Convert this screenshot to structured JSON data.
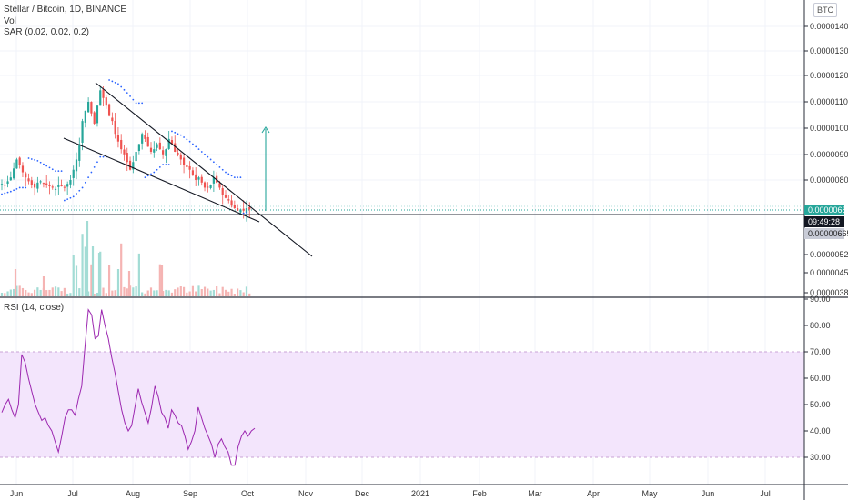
{
  "header": {
    "symbol_line": "Stellar / Bitcoin, 1D, BINANCE",
    "vol_label": "Vol",
    "sar_label": "SAR (0.02, 0.02, 0.2)",
    "rsi_label": "RSI (14, close)",
    "scale_button": "BTC"
  },
  "price_tags": {
    "last_price": "0.00000685",
    "countdown": "09:49:28",
    "cursor_price": "0.00000665"
  },
  "colors": {
    "up": "#26a69a",
    "down": "#ef5350",
    "sar": "#2962ff",
    "rsi_line": "#9c27b0",
    "rsi_band": "#f3e5fc",
    "last_price_tag": "#26a69a",
    "cursor_tag": "#c8cbd6"
  },
  "chart_data": [
    {
      "type": "candlestick",
      "title": "Stellar / Bitcoin, 1D, BINANCE",
      "price_ticks": [
        "0.00001400",
        "0.00001300",
        "0.00001200",
        "0.00001100",
        "0.00001000",
        "0.00000900",
        "0.00000800",
        "0.00000520",
        "0.00000450",
        "0.00000380"
      ],
      "x_ticks": [
        "Jun",
        "Jul",
        "Aug",
        "Sep",
        "Oct",
        "Nov",
        "Dec",
        "2021",
        "Feb",
        "Mar",
        "Apr",
        "May",
        "Jun",
        "Jul"
      ],
      "close_series": [
        7.85,
        7.8,
        7.95,
        8.1,
        8.45,
        8.8,
        8.6,
        8.3,
        8.1,
        7.95,
        7.8,
        7.7,
        7.9,
        7.95,
        7.85,
        7.8,
        7.75,
        7.7,
        7.65,
        7.8,
        7.75,
        7.7,
        7.85,
        8.0,
        8.4,
        8.8,
        9.4,
        10.3,
        10.7,
        11.05,
        10.6,
        10.2,
        10.9,
        11.5,
        11.2,
        10.9,
        10.5,
        10.3,
        9.8,
        9.5,
        9.2,
        9.0,
        8.7,
        8.4,
        8.7,
        9.1,
        9.4,
        9.8,
        9.6,
        9.3,
        9.1,
        9.2,
        9.4,
        9.2,
        9.0,
        9.2,
        9.6,
        9.4,
        9.1,
        9.0,
        8.8,
        8.6,
        8.5,
        8.4,
        8.2,
        8.0,
        8.1,
        7.9,
        7.7,
        7.7,
        7.8,
        8.1,
        7.9,
        7.7,
        7.4,
        7.3,
        7.2,
        7.0,
        6.9,
        6.8,
        6.85,
        6.8,
        6.9,
        6.85
      ],
      "sar_points": [
        [
          0,
          7.45
        ],
        [
          3,
          7.55
        ],
        [
          6,
          7.7
        ],
        [
          9,
          8.85
        ],
        [
          12,
          8.75
        ],
        [
          15,
          8.55
        ],
        [
          18,
          8.35
        ],
        [
          21,
          7.2
        ],
        [
          24,
          7.35
        ],
        [
          27,
          7.7
        ],
        [
          30,
          8.3
        ],
        [
          33,
          8.9
        ],
        [
          36,
          11.9
        ],
        [
          39,
          11.75
        ],
        [
          42,
          11.4
        ],
        [
          45,
          11.0
        ],
        [
          48,
          8.1
        ],
        [
          51,
          8.3
        ],
        [
          54,
          8.6
        ],
        [
          57,
          9.9
        ],
        [
          60,
          9.75
        ],
        [
          63,
          9.5
        ],
        [
          66,
          9.2
        ],
        [
          69,
          8.9
        ],
        [
          72,
          8.6
        ],
        [
          75,
          8.3
        ],
        [
          78,
          8.1
        ],
        [
          81,
          6.7
        ],
        [
          83,
          6.75
        ]
      ]
    },
    {
      "type": "line",
      "title": "RSI (14, close)",
      "y_ticks": [
        "90.00",
        "80.00",
        "70.00",
        "60.00",
        "50.00",
        "40.00",
        "30.00"
      ],
      "band": [
        30,
        70
      ],
      "values": [
        47,
        50,
        52,
        48,
        45,
        50,
        69,
        66,
        60,
        55,
        50,
        47,
        44,
        45,
        42,
        40,
        36,
        32,
        38,
        45,
        48,
        48,
        46,
        52,
        57,
        72,
        86,
        84,
        75,
        76,
        86,
        80,
        75,
        68,
        62,
        55,
        48,
        43,
        40,
        42,
        49,
        56,
        51,
        47,
        43,
        49,
        57,
        53,
        47,
        45,
        41,
        48,
        46,
        43,
        42,
        38,
        33,
        36,
        40,
        49,
        45,
        41,
        38,
        35,
        30,
        35,
        37,
        34,
        32,
        27,
        27,
        34,
        38,
        40,
        38,
        40,
        41
      ],
      "start_index": 0
    }
  ]
}
